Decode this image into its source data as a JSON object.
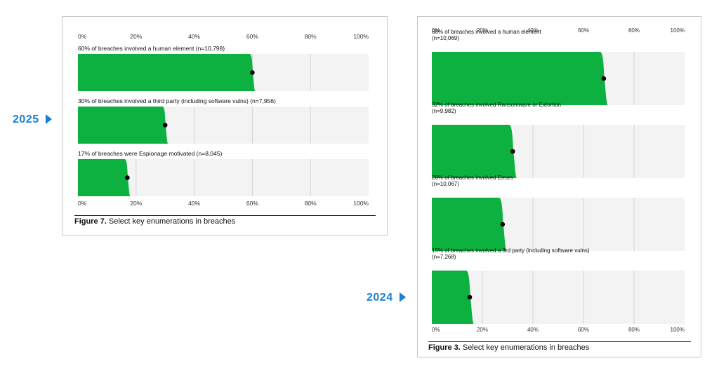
{
  "year_labels": {
    "y2025": "2025",
    "y2024": "2024"
  },
  "colors": {
    "bar": "#0cb13f",
    "track": "#f3f3f3",
    "grid": "#d4d4d4",
    "dot": "#000000",
    "accent": "#1a7fd6"
  },
  "figures": [
    {
      "caption_bold": "Figure 7.",
      "caption_text": "Select key enumerations in breaches"
    },
    {
      "caption_bold": "Figure 3.",
      "caption_text": "Select key enumerations in breaches"
    }
  ],
  "chart_data": [
    {
      "type": "bar",
      "orientation": "horizontal",
      "xlim": [
        0,
        100
      ],
      "ticks": [
        "0%",
        "20%",
        "40%",
        "60%",
        "80%",
        "100%"
      ],
      "grid": true,
      "series": [
        {
          "label": "60% of breaches involved a human element (n=10,798)",
          "value": 60
        },
        {
          "label": "30% of breaches involved a third party (including software vulns) (n=7,956)",
          "value": 30
        },
        {
          "label": "17% of breaches were Espionage motivated (n=8,045)",
          "value": 17
        }
      ]
    },
    {
      "type": "bar",
      "orientation": "horizontal",
      "xlim": [
        0,
        100
      ],
      "ticks": [
        "0%",
        "20%",
        "40%",
        "60%",
        "80%",
        "100%"
      ],
      "grid": true,
      "series": [
        {
          "label": "68% of breaches involved a human element",
          "sub": "(n=10,069)",
          "value": 68
        },
        {
          "label": "32% of breaches involved Ransomware or Extortion",
          "sub": "(n=9,982)",
          "value": 32
        },
        {
          "label": "28% of breaches involved Errors",
          "sub": "(n=10,067)",
          "value": 28
        },
        {
          "label": "15% of breaches involved a 3rd party (including software vulns)",
          "sub": "(n=7,268)",
          "value": 15
        }
      ]
    }
  ]
}
